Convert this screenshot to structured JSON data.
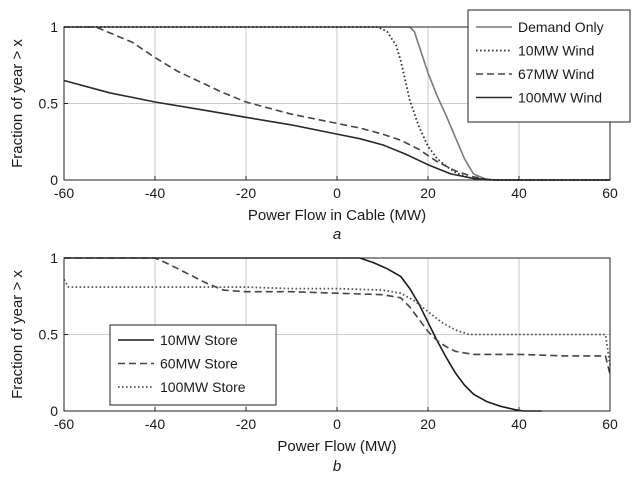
{
  "chart_data": [
    {
      "type": "line",
      "panel_label": "a",
      "xlabel": "Power Flow in Cable (MW)",
      "ylabel": "Fraction of year > x",
      "xlim": [
        -60,
        60
      ],
      "ylim": [
        0,
        1
      ],
      "xticks": [
        -60,
        -40,
        -20,
        0,
        20,
        40,
        60
      ],
      "yticks": [
        0,
        0.5,
        1
      ],
      "ytick_labels": [
        "0",
        "0.5",
        "1"
      ],
      "grid": true,
      "legend_position": "top-right",
      "series": [
        {
          "name": "Demand Only",
          "style": "solid",
          "color": "#7a7a7a",
          "x": [
            -60,
            16,
            17,
            18,
            20,
            22,
            24,
            26,
            28,
            30,
            33,
            60
          ],
          "y": [
            1,
            1,
            0.97,
            0.88,
            0.7,
            0.55,
            0.42,
            0.28,
            0.14,
            0.04,
            0,
            0
          ]
        },
        {
          "name": "10MW Wind",
          "style": "dotted",
          "color": "#333333",
          "x": [
            -60,
            9,
            11,
            13,
            14,
            15,
            16,
            18,
            20,
            22,
            24,
            26,
            28,
            30,
            33,
            60
          ],
          "y": [
            1,
            1,
            0.97,
            0.88,
            0.78,
            0.65,
            0.52,
            0.35,
            0.22,
            0.14,
            0.09,
            0.05,
            0.025,
            0.01,
            0,
            0
          ]
        },
        {
          "name": "67MW Wind",
          "style": "dashed",
          "color": "#444444",
          "x": [
            -60,
            -53,
            -45,
            -40,
            -35,
            -30,
            -25,
            -20,
            -15,
            -10,
            -5,
            0,
            5,
            10,
            14,
            18,
            22,
            26,
            30,
            34,
            60
          ],
          "y": [
            1,
            1,
            0.9,
            0.8,
            0.71,
            0.64,
            0.57,
            0.51,
            0.47,
            0.43,
            0.4,
            0.37,
            0.34,
            0.3,
            0.26,
            0.2,
            0.12,
            0.06,
            0.02,
            0,
            0
          ]
        },
        {
          "name": "100MW Wind",
          "style": "solid",
          "color": "#2a2a2a",
          "x": [
            -60,
            -50,
            -40,
            -30,
            -20,
            -10,
            0,
            5,
            10,
            15,
            20,
            25,
            30,
            35,
            60
          ],
          "y": [
            0.65,
            0.57,
            0.51,
            0.46,
            0.41,
            0.36,
            0.3,
            0.27,
            0.23,
            0.17,
            0.1,
            0.04,
            0.01,
            0,
            0
          ]
        }
      ]
    },
    {
      "type": "line",
      "panel_label": "b",
      "xlabel": "Power Flow (MW)",
      "ylabel": "Fraction of year > x",
      "xlim": [
        -60,
        60
      ],
      "ylim": [
        0,
        1
      ],
      "xticks": [
        -60,
        -40,
        -20,
        0,
        20,
        40,
        60
      ],
      "yticks": [
        0,
        0.5,
        1
      ],
      "ytick_labels": [
        "0",
        "0.5",
        "1"
      ],
      "grid": true,
      "legend_position": "bottom-left",
      "series": [
        {
          "name": "10MW Store",
          "style": "solid",
          "color": "#1a1a1a",
          "x": [
            -60,
            5,
            8,
            11,
            14,
            16,
            18,
            20,
            22,
            24,
            26,
            28,
            30,
            33,
            36,
            39,
            41,
            45
          ],
          "y": [
            1,
            1,
            0.97,
            0.93,
            0.88,
            0.8,
            0.7,
            0.58,
            0.46,
            0.35,
            0.25,
            0.17,
            0.11,
            0.06,
            0.03,
            0.01,
            0,
            0
          ]
        },
        {
          "name": "60MW Store",
          "style": "dashed",
          "color": "#444444",
          "x": [
            -60,
            -40,
            -37,
            -33,
            -29,
            -25,
            -20,
            -10,
            0,
            10,
            14,
            16,
            18,
            20,
            22,
            24,
            26,
            28,
            30,
            35,
            40,
            50,
            59,
            60
          ],
          "y": [
            1,
            1,
            0.96,
            0.9,
            0.84,
            0.79,
            0.78,
            0.78,
            0.77,
            0.76,
            0.74,
            0.68,
            0.6,
            0.52,
            0.46,
            0.42,
            0.39,
            0.38,
            0.37,
            0.37,
            0.37,
            0.36,
            0.36,
            0.24
          ]
        },
        {
          "name": "100MW Store",
          "style": "dotted",
          "color": "#555555",
          "x": [
            -60,
            -59,
            -50,
            -40,
            -30,
            -20,
            -10,
            0,
            10,
            14,
            17,
            20,
            23,
            26,
            29,
            35,
            45,
            59,
            60
          ],
          "y": [
            0.86,
            0.81,
            0.81,
            0.81,
            0.81,
            0.81,
            0.8,
            0.8,
            0.79,
            0.77,
            0.72,
            0.65,
            0.58,
            0.53,
            0.5,
            0.5,
            0.5,
            0.5,
            0.3
          ]
        }
      ]
    }
  ]
}
